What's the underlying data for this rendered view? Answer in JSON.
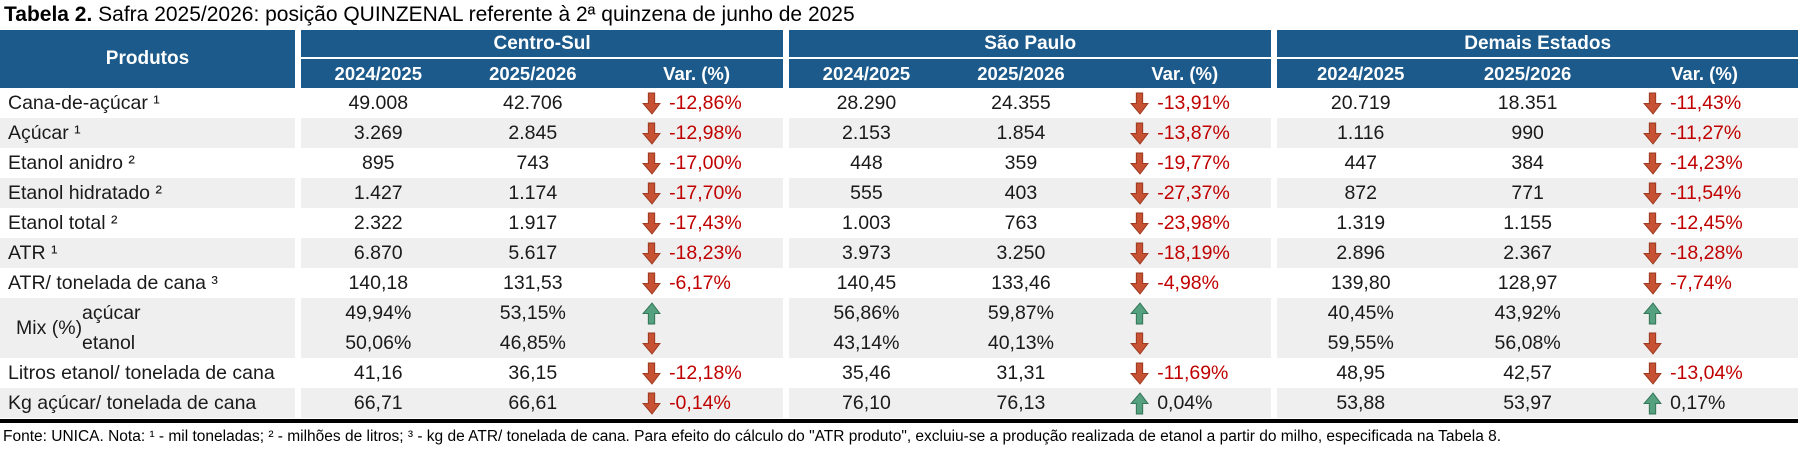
{
  "title": {
    "prefix": "Tabela 2.",
    "rest": " Safra 2025/2026: posição QUINZENAL referente à 2ª quinzena de junho de 2025"
  },
  "colors": {
    "header_bg": "#1B5A8A",
    "stripe_gray": "#EFEFEF",
    "negative_red": "#C00000",
    "arrow_down_red": "#C65233",
    "arrow_up_green": "#55A07E"
  },
  "table": {
    "products_header": "Produtos",
    "mix_label": "Mix (%)",
    "groups": [
      {
        "name": "Centro-Sul",
        "cols": [
          "2024/2025",
          "2025/2026",
          "Var. (%)"
        ]
      },
      {
        "name": "São Paulo",
        "cols": [
          "2024/2025",
          "2025/2026",
          "Var. (%)"
        ]
      },
      {
        "name": "Demais Estados",
        "cols": [
          "2024/2025",
          "2025/2026",
          "Var. (%)"
        ]
      }
    ],
    "rows": [
      {
        "label": "Cana-de-açúcar ¹",
        "stripe": "white",
        "mix": false,
        "groups": [
          {
            "y1": "49.008",
            "y2": "42.706",
            "arrow": "down",
            "var": "-12,86%"
          },
          {
            "y1": "28.290",
            "y2": "24.355",
            "arrow": "down",
            "var": "-13,91%"
          },
          {
            "y1": "20.719",
            "y2": "18.351",
            "arrow": "down",
            "var": "-11,43%"
          }
        ]
      },
      {
        "label": "Açúcar ¹",
        "stripe": "gray",
        "mix": false,
        "groups": [
          {
            "y1": "3.269",
            "y2": "2.845",
            "arrow": "down",
            "var": "-12,98%"
          },
          {
            "y1": "2.153",
            "y2": "1.854",
            "arrow": "down",
            "var": "-13,87%"
          },
          {
            "y1": "1.116",
            "y2": "990",
            "arrow": "down",
            "var": "-11,27%"
          }
        ]
      },
      {
        "label": "Etanol anidro ²",
        "stripe": "white",
        "mix": false,
        "groups": [
          {
            "y1": "895",
            "y2": "743",
            "arrow": "down",
            "var": "-17,00%"
          },
          {
            "y1": "448",
            "y2": "359",
            "arrow": "down",
            "var": "-19,77%"
          },
          {
            "y1": "447",
            "y2": "384",
            "arrow": "down",
            "var": "-14,23%"
          }
        ]
      },
      {
        "label": "Etanol hidratado ²",
        "stripe": "gray",
        "mix": false,
        "groups": [
          {
            "y1": "1.427",
            "y2": "1.174",
            "arrow": "down",
            "var": "-17,70%"
          },
          {
            "y1": "555",
            "y2": "403",
            "arrow": "down",
            "var": "-27,37%"
          },
          {
            "y1": "872",
            "y2": "771",
            "arrow": "down",
            "var": "-11,54%"
          }
        ]
      },
      {
        "label": "Etanol total ²",
        "stripe": "white",
        "mix": false,
        "groups": [
          {
            "y1": "2.322",
            "y2": "1.917",
            "arrow": "down",
            "var": "-17,43%"
          },
          {
            "y1": "1.003",
            "y2": "763",
            "arrow": "down",
            "var": "-23,98%"
          },
          {
            "y1": "1.319",
            "y2": "1.155",
            "arrow": "down",
            "var": "-12,45%"
          }
        ]
      },
      {
        "label": "ATR ¹",
        "stripe": "gray",
        "mix": false,
        "groups": [
          {
            "y1": "6.870",
            "y2": "5.617",
            "arrow": "down",
            "var": "-18,23%"
          },
          {
            "y1": "3.973",
            "y2": "3.250",
            "arrow": "down",
            "var": "-18,19%"
          },
          {
            "y1": "2.896",
            "y2": "2.367",
            "arrow": "down",
            "var": "-18,28%"
          }
        ]
      },
      {
        "label": "ATR/ tonelada de cana ³",
        "stripe": "white",
        "mix": false,
        "groups": [
          {
            "y1": "140,18",
            "y2": "131,53",
            "arrow": "down",
            "var": "-6,17%"
          },
          {
            "y1": "140,45",
            "y2": "133,46",
            "arrow": "down",
            "var": "-4,98%"
          },
          {
            "y1": "139,80",
            "y2": "128,97",
            "arrow": "down",
            "var": "-7,74%"
          }
        ]
      },
      {
        "label": "açúcar",
        "stripe": "gray",
        "mix": true,
        "mix_first": true,
        "groups": [
          {
            "y1": "49,94%",
            "y2": "53,15%",
            "arrow": "up",
            "var": ""
          },
          {
            "y1": "56,86%",
            "y2": "59,87%",
            "arrow": "up",
            "var": ""
          },
          {
            "y1": "40,45%",
            "y2": "43,92%",
            "arrow": "up",
            "var": ""
          }
        ]
      },
      {
        "label": "etanol",
        "stripe": "gray",
        "mix": true,
        "mix_first": false,
        "groups": [
          {
            "y1": "50,06%",
            "y2": "46,85%",
            "arrow": "down",
            "var": ""
          },
          {
            "y1": "43,14%",
            "y2": "40,13%",
            "arrow": "down",
            "var": ""
          },
          {
            "y1": "59,55%",
            "y2": "56,08%",
            "arrow": "down",
            "var": ""
          }
        ]
      },
      {
        "label": "Litros etanol/ tonelada de cana",
        "stripe": "white",
        "mix": false,
        "groups": [
          {
            "y1": "41,16",
            "y2": "36,15",
            "arrow": "down",
            "var": "-12,18%"
          },
          {
            "y1": "35,46",
            "y2": "31,31",
            "arrow": "down",
            "var": "-11,69%"
          },
          {
            "y1": "48,95",
            "y2": "42,57",
            "arrow": "down",
            "var": "-13,04%"
          }
        ]
      },
      {
        "label": "Kg açúcar/ tonelada de cana",
        "stripe": "gray",
        "mix": false,
        "groups": [
          {
            "y1": "66,71",
            "y2": "66,61",
            "arrow": "down",
            "var": "-0,14%"
          },
          {
            "y1": "76,10",
            "y2": "76,13",
            "arrow": "up",
            "var": "0,04%"
          },
          {
            "y1": "53,88",
            "y2": "53,97",
            "arrow": "up",
            "var": "0,17%"
          }
        ]
      }
    ]
  },
  "footnote": "Fonte: UNICA. Nota: ¹ - mil toneladas; ² - milhões de litros; ³ - kg de ATR/ tonelada de cana. Para efeito do cálculo do \"ATR produto\", excluiu-se a produção realizada de etanol a partir do milho, especificada na Tabela 8."
}
